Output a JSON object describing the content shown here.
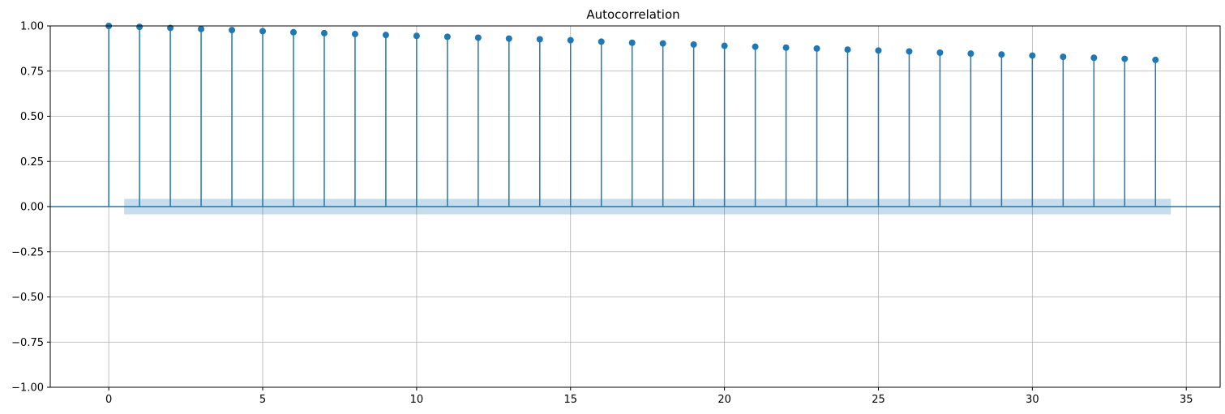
{
  "chart_data": {
    "type": "stem",
    "title": "Autocorrelation",
    "xlabel": "",
    "ylabel": "",
    "xlim": [
      -1.9,
      36.1
    ],
    "ylim": [
      -1.0,
      1.0
    ],
    "x_ticks": [
      0,
      5,
      10,
      15,
      20,
      25,
      30,
      35
    ],
    "x_tick_labels": [
      "0",
      "5",
      "10",
      "15",
      "20",
      "25",
      "30",
      "35"
    ],
    "y_ticks": [
      1.0,
      0.75,
      0.5,
      0.25,
      0.0,
      -0.25,
      -0.5,
      -0.75,
      -1.0
    ],
    "y_tick_labels": [
      "1.00",
      "0.75",
      "0.50",
      "0.25",
      "0.00",
      "−0.25",
      "−0.50",
      "−0.75",
      "−1.00"
    ],
    "grid": true,
    "lags": [
      0,
      1,
      2,
      3,
      4,
      5,
      6,
      7,
      8,
      9,
      10,
      11,
      12,
      13,
      14,
      15,
      16,
      17,
      18,
      19,
      20,
      21,
      22,
      23,
      24,
      25,
      26,
      27,
      28,
      29,
      30,
      31,
      32,
      33,
      34
    ],
    "values": [
      1.0,
      0.995,
      0.989,
      0.983,
      0.977,
      0.971,
      0.965,
      0.96,
      0.955,
      0.95,
      0.945,
      0.94,
      0.935,
      0.93,
      0.926,
      0.921,
      0.913,
      0.907,
      0.903,
      0.897,
      0.89,
      0.885,
      0.88,
      0.875,
      0.869,
      0.864,
      0.859,
      0.852,
      0.847,
      0.842,
      0.836,
      0.829,
      0.824,
      0.818,
      0.812
    ],
    "confidence_band": {
      "x_range": [
        0.5,
        34.5
      ],
      "lower": -0.043,
      "upper": 0.043
    },
    "colors": {
      "stem": "#1f77b4",
      "band": "#1f77b4",
      "grid": "#b0b0b0"
    }
  }
}
